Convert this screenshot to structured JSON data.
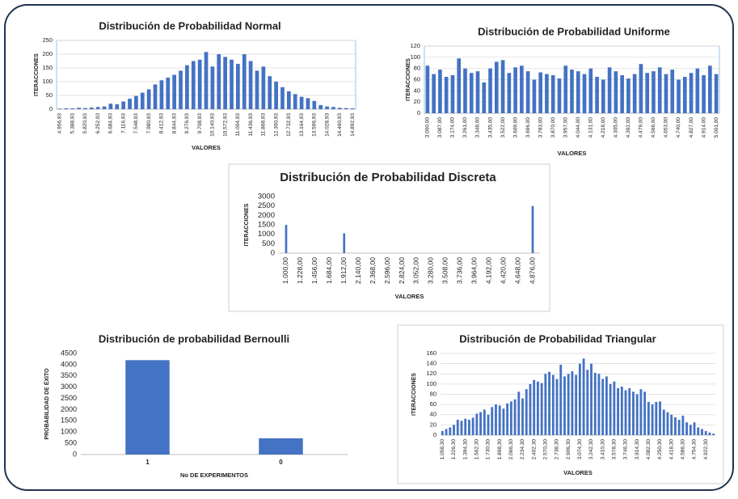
{
  "chart_data": [
    {
      "type": "bar",
      "title": "Distribución de Probabilidad Normal",
      "x_label": "VALORES",
      "y_label": "ITERACCIONES",
      "color": "#4472c4",
      "grid": true,
      "categories": [
        "4.956,93",
        null,
        "5.388,93",
        null,
        "5.820,93",
        null,
        "6.252,93",
        null,
        "6.684,93",
        null,
        "7.116,93",
        null,
        "7.548,93",
        null,
        "7.980,93",
        null,
        "8.412,93",
        null,
        "8.844,93",
        null,
        "9.276,93",
        null,
        "9.708,93",
        null,
        "10.140,93",
        null,
        "10.572,93",
        null,
        "11.004,93",
        null,
        "11.436,93",
        null,
        "11.868,93",
        null,
        "12.300,93",
        null,
        "12.732,93",
        null,
        "13.164,93",
        null,
        "13.596,93",
        null,
        "14.028,93",
        null,
        "14.460,93",
        null,
        "14.892,93"
      ],
      "values": [
        2,
        3,
        3,
        5,
        4,
        6,
        8,
        10,
        20,
        18,
        28,
        38,
        48,
        60,
        72,
        90,
        105,
        115,
        125,
        140,
        160,
        175,
        180,
        208,
        155,
        200,
        190,
        180,
        165,
        200,
        175,
        140,
        155,
        120,
        100,
        80,
        65,
        55,
        45,
        40,
        30,
        15,
        10,
        8,
        5,
        4,
        3
      ],
      "ylim": [
        0,
        250
      ],
      "yticks": [
        0,
        50,
        100,
        150,
        200,
        250
      ]
    },
    {
      "type": "bar",
      "title": "Distribución de Probabilidad Uniforme",
      "x_label": "VALORES",
      "y_label": "ITERACCIONES",
      "color": "#4472c4",
      "grid": true,
      "categories": [
        "3.000,00",
        null,
        "3.087,00",
        null,
        "3.174,00",
        null,
        "3.261,00",
        null,
        "3.348,00",
        null,
        "3.435,00",
        null,
        "3.522,00",
        null,
        "3.609,00",
        null,
        "3.696,00",
        null,
        "3.783,00",
        null,
        "3.870,00",
        null,
        "3.957,00",
        null,
        "4.044,00",
        null,
        "4.131,00",
        null,
        "4.218,00",
        null,
        "4.305,00",
        null,
        "4.392,00",
        null,
        "4.479,00",
        null,
        "4.566,00",
        null,
        "4.653,00",
        null,
        "4.740,00",
        null,
        "4.827,00",
        null,
        "4.914,00",
        null,
        "5.001,00"
      ],
      "values": [
        85,
        70,
        78,
        65,
        68,
        98,
        80,
        72,
        75,
        55,
        80,
        92,
        95,
        72,
        82,
        85,
        75,
        60,
        73,
        70,
        68,
        62,
        85,
        78,
        75,
        70,
        80,
        65,
        60,
        82,
        75,
        68,
        62,
        70,
        88,
        72,
        75,
        82,
        70,
        78,
        60,
        65,
        72,
        80,
        68,
        85,
        70
      ],
      "ylim": [
        0,
        120
      ],
      "yticks": [
        0,
        20,
        40,
        60,
        80,
        100,
        120
      ]
    },
    {
      "type": "bar",
      "title": "Distribución de Probabilidad Discreta",
      "x_label": "VALORES",
      "y_label": "ITERACCIONES",
      "color": "#4472c4",
      "grid": false,
      "categories": [
        "1.000,00",
        "1.228,00",
        "1.456,00",
        "1.684,00",
        "1.912,00",
        "2.140,00",
        "2.368,00",
        "2.596,00",
        "2.824,00",
        "3.052,00",
        "3.280,00",
        "3.508,00",
        "3.736,00",
        "3.964,00",
        "4.192,00",
        "4.420,00",
        "4.648,00",
        "4.876,00"
      ],
      "values": [
        1500,
        0,
        0,
        0,
        1050,
        0,
        0,
        0,
        0,
        0,
        0,
        0,
        0,
        0,
        0,
        0,
        0,
        2500
      ],
      "ylim": [
        0,
        3000
      ],
      "yticks": [
        0,
        500,
        1000,
        1500,
        2000,
        2500,
        3000
      ]
    },
    {
      "type": "bar",
      "title": "Distribución de probabilidad Bernoulli",
      "x_label": "No DE EXPERIMENTOS",
      "y_label": "PROBABILIDAD DE ÉXITO",
      "color": "#4472c4",
      "grid": false,
      "categories": [
        "1",
        "0"
      ],
      "values": [
        4200,
        720
      ],
      "ylim": [
        0,
        4500
      ],
      "yticks": [
        0,
        500,
        1000,
        1500,
        2000,
        2500,
        3000,
        3500,
        4000,
        4500
      ]
    },
    {
      "type": "bar",
      "title": "Distribución de Probabilidad Triangular",
      "x_label": "VALORES",
      "y_label": "ITERACCIONES",
      "color": "#4472c4",
      "grid": true,
      "categories": [
        "1.058,30",
        null,
        null,
        "1.226,30",
        null,
        null,
        "1.394,30",
        null,
        null,
        "1.562,30",
        null,
        null,
        "1.730,30",
        null,
        null,
        "1.898,30",
        null,
        null,
        "2.066,30",
        null,
        null,
        "2.234,30",
        null,
        null,
        "2.402,30",
        null,
        null,
        "2.570,30",
        null,
        null,
        "2.738,30",
        null,
        null,
        "2.906,30",
        null,
        null,
        "3.074,30",
        null,
        null,
        "3.242,30",
        null,
        null,
        "3.410,30",
        null,
        null,
        "3.578,30",
        null,
        null,
        "3.746,30",
        null,
        null,
        "3.914,30",
        null,
        null,
        "4.082,30",
        null,
        null,
        "4.250,30",
        null,
        null,
        "4.418,30",
        null,
        null,
        "4.586,30",
        null,
        null,
        "4.754,30",
        null,
        null,
        "4.922,30",
        null,
        null
      ],
      "values": [
        8,
        12,
        15,
        20,
        30,
        28,
        32,
        30,
        34,
        42,
        45,
        50,
        40,
        55,
        60,
        58,
        52,
        62,
        66,
        70,
        85,
        72,
        90,
        100,
        108,
        105,
        102,
        120,
        124,
        118,
        110,
        138,
        115,
        120,
        125,
        118,
        140,
        150,
        128,
        140,
        122,
        120,
        110,
        115,
        100,
        105,
        92,
        95,
        88,
        92,
        85,
        80,
        90,
        85,
        65,
        60,
        65,
        66,
        50,
        45,
        40,
        35,
        30,
        38,
        25,
        20,
        25,
        15,
        12,
        8,
        5,
        3
      ],
      "ylim": [
        0,
        160
      ],
      "yticks": [
        0,
        20,
        40,
        60,
        80,
        100,
        120,
        140,
        160
      ]
    }
  ]
}
